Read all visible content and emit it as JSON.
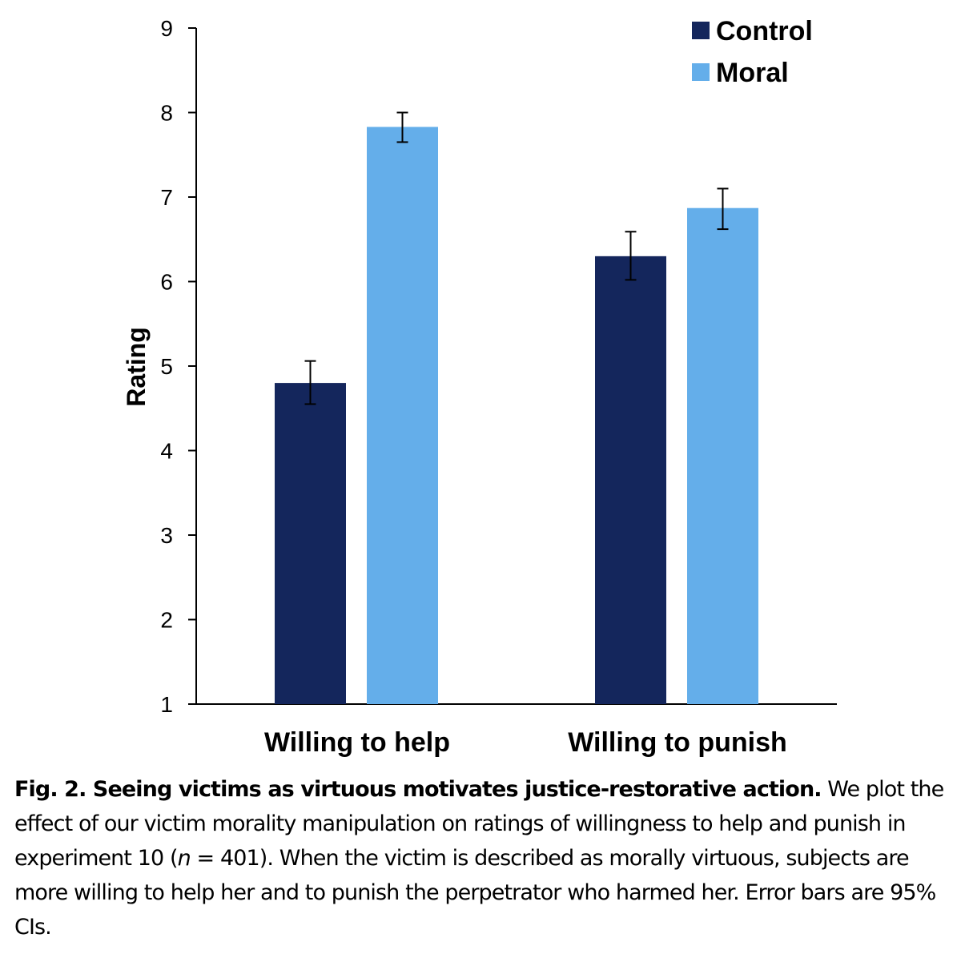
{
  "chart_data": {
    "type": "bar",
    "title": "",
    "xlabel": "",
    "ylabel": "Rating",
    "ylim": [
      1,
      9
    ],
    "yticks": [
      1,
      2,
      3,
      4,
      5,
      6,
      7,
      8,
      9
    ],
    "categories": [
      "Willing to help",
      "Willing to punish"
    ],
    "series": [
      {
        "name": "Control",
        "color": "#14265c",
        "values": [
          4.8,
          6.3
        ],
        "ci_low": [
          4.55,
          6.02
        ],
        "ci_high": [
          5.06,
          6.59
        ]
      },
      {
        "name": "Moral",
        "color": "#64aeea",
        "values": [
          7.83,
          6.87
        ],
        "ci_low": [
          7.65,
          6.62
        ],
        "ci_high": [
          8.0,
          7.1
        ]
      }
    ],
    "legend_position": "top-right",
    "grid": false,
    "error_bars": "95% CI"
  },
  "caption": {
    "label": "Fig. 2. Seeing victims as virtuous motivates justice-restorative action.",
    "text_1": " We plot the effect of our victim morality manipulation on ratings of willingness to help and punish in experiment 10 (",
    "n_symbol": "n",
    "text_2": " = 401). When the victim is described as morally virtuous, subjects are more willing to help her and to punish the perpetrator who harmed her. Error bars are 95% CIs."
  }
}
